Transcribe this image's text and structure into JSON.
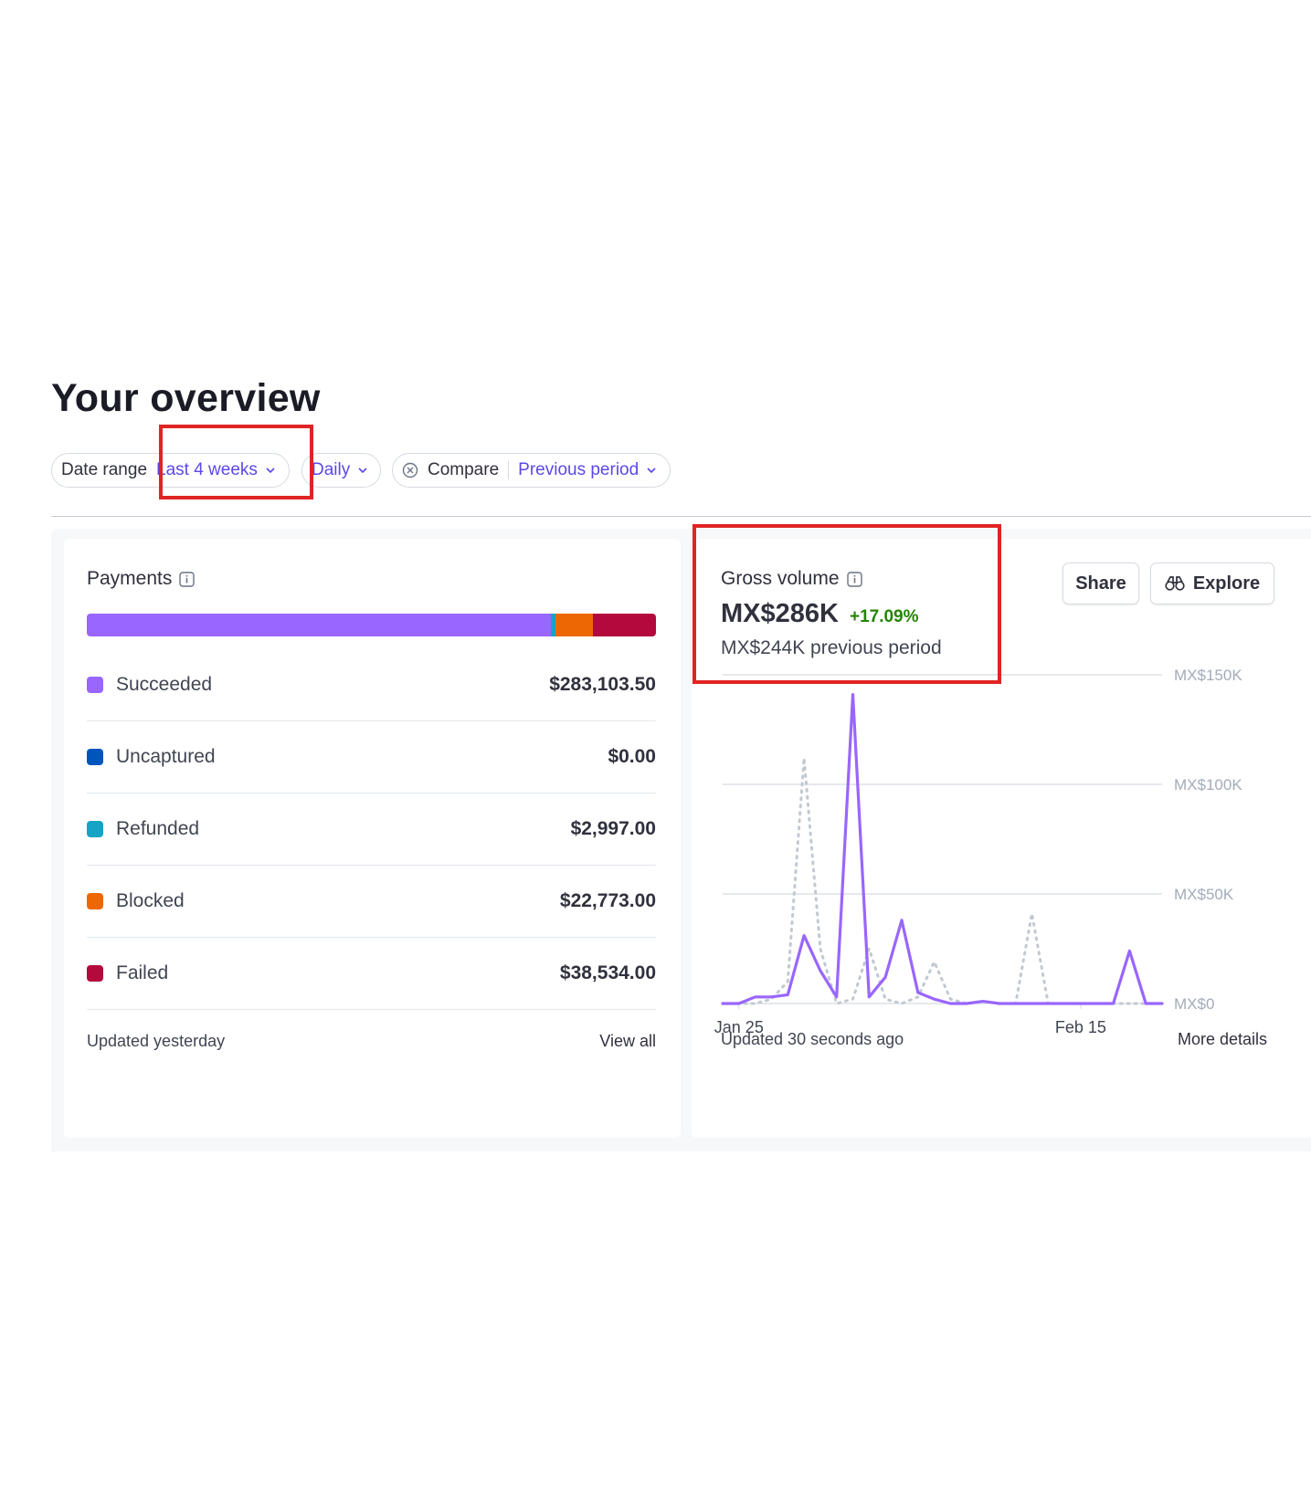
{
  "page": {
    "title": "Your overview"
  },
  "filters": {
    "date_range_label": "Date range",
    "date_range_value": "Last 4 weeks",
    "interval_value": "Daily",
    "compare_label": "Compare",
    "compare_value": "Previous period"
  },
  "payments": {
    "title": "Payments",
    "bar_fractions": [
      0.8236,
      0.0,
      0.0087,
      0.0663,
      0.1121
    ],
    "items": [
      {
        "label": "Succeeded",
        "amount": "$283,103.50",
        "color": "#9966ff"
      },
      {
        "label": "Uncaptured",
        "amount": "$0.00",
        "color": "#0055bc"
      },
      {
        "label": "Refunded",
        "amount": "$2,997.00",
        "color": "#15a4c5"
      },
      {
        "label": "Blocked",
        "amount": "$22,773.00",
        "color": "#ed6804"
      },
      {
        "label": "Failed",
        "amount": "$38,534.00",
        "color": "#b3093c"
      }
    ],
    "updated": "Updated yesterday",
    "view_all": "View all"
  },
  "gross_volume": {
    "title": "Gross volume",
    "value": "MX$286K",
    "change": "+17.09%",
    "previous": "MX$244K previous period",
    "share_label": "Share",
    "explore_label": "Explore",
    "updated": "Updated 30 seconds ago",
    "more_details": "More details"
  },
  "chart_data": {
    "type": "line",
    "x": [
      "Jan 24",
      "Jan 25",
      "Jan 26",
      "Jan 27",
      "Jan 28",
      "Jan 29",
      "Jan 30",
      "Jan 31",
      "Feb 1",
      "Feb 2",
      "Feb 3",
      "Feb 4",
      "Feb 5",
      "Feb 6",
      "Feb 7",
      "Feb 8",
      "Feb 9",
      "Feb 10",
      "Feb 11",
      "Feb 12",
      "Feb 13",
      "Feb 14",
      "Feb 15",
      "Feb 16",
      "Feb 17",
      "Feb 18",
      "Feb 19",
      "Feb 20"
    ],
    "x_ticks": [
      "Jan 25",
      "Feb 15"
    ],
    "y_ticks": [
      "MX$0",
      "MX$50K",
      "MX$100K",
      "MX$150K"
    ],
    "ylim": [
      0,
      150000
    ],
    "grid": true,
    "series": [
      {
        "style": "solid",
        "color": "#9966ff",
        "values": [
          0,
          0,
          3000,
          3000,
          4000,
          31000,
          15000,
          3000,
          141000,
          3000,
          12000,
          38000,
          5000,
          2000,
          0,
          0,
          1000,
          0,
          0,
          0,
          0,
          0,
          0,
          0,
          0,
          24000,
          0,
          0
        ]
      },
      {
        "style": "dotted",
        "color": "#c1c9d2",
        "values": [
          0,
          0,
          0,
          2000,
          10000,
          112000,
          25000,
          0,
          2000,
          25000,
          2000,
          0,
          3000,
          19000,
          2000,
          0,
          1000,
          0,
          0,
          41000,
          0,
          0,
          0,
          0,
          0,
          0,
          0,
          0
        ]
      }
    ]
  }
}
